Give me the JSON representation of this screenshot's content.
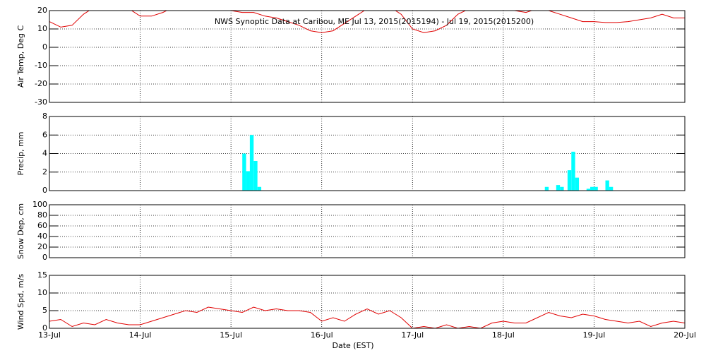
{
  "chart_data": [
    {
      "type": "line",
      "title": "NWS Synoptic Data at Caribou, ME   Jul 13, 2015(2015194) - Jul 19, 2015(2015200)",
      "ylabel": "Air Temp, Deg C",
      "ylim": [
        -30,
        20
      ],
      "yticks": [
        -30,
        -20,
        -10,
        0,
        10,
        20
      ],
      "color": "#e00000",
      "x": [
        0,
        0.125,
        0.25,
        0.375,
        0.5,
        0.625,
        0.75,
        0.875,
        1,
        1.125,
        1.25,
        1.375,
        1.5,
        1.625,
        1.75,
        1.875,
        2,
        2.125,
        2.25,
        2.375,
        2.5,
        2.625,
        2.75,
        2.875,
        3,
        3.125,
        3.25,
        3.375,
        3.5,
        3.625,
        3.75,
        3.875,
        4,
        4.125,
        4.25,
        4.375,
        4.5,
        4.625,
        4.75,
        4.875,
        5,
        5.125,
        5.25,
        5.375,
        5.5,
        5.625,
        5.75,
        5.875,
        6,
        6.125,
        6.25,
        6.375,
        6.5,
        6.625,
        6.75,
        6.875,
        7
      ],
      "values": [
        14,
        11,
        12,
        18,
        22,
        22,
        22,
        21,
        17,
        17,
        19,
        22,
        22,
        22,
        22,
        22,
        20,
        19,
        19,
        17,
        16,
        14,
        12,
        9,
        8,
        9,
        13,
        17,
        21,
        22,
        22,
        18,
        10,
        8,
        9,
        12,
        18,
        21,
        22,
        22,
        22,
        20,
        19,
        21,
        20,
        18,
        16,
        14,
        14,
        13.5,
        13.5,
        14,
        15,
        16,
        18,
        16,
        16
      ]
    },
    {
      "type": "bar",
      "ylabel": "Precip, mm",
      "ylim": [
        0,
        8
      ],
      "yticks": [
        0,
        2,
        4,
        6,
        8
      ],
      "color": "#00ffff",
      "bar_width": 0.0417,
      "x": [
        2.125,
        2.167,
        2.208,
        2.25,
        2.292,
        5.458,
        5.583,
        5.625,
        5.708,
        5.75,
        5.792,
        5.917,
        5.958,
        6.0,
        6.125,
        6.167
      ],
      "values": [
        4,
        2.1,
        6,
        3.2,
        0.4,
        0.4,
        0.6,
        0.4,
        2.2,
        4.2,
        1.4,
        0.2,
        0.4,
        0.4,
        1.1,
        0.4
      ]
    },
    {
      "type": "line",
      "ylabel": "Snow Dep, cm",
      "ylim": [
        0,
        100
      ],
      "yticks": [
        0,
        20,
        40,
        60,
        80,
        100
      ],
      "color": "#e00000",
      "x": [],
      "values": []
    },
    {
      "type": "line",
      "ylabel": "Wind Spd, m/s",
      "ylim": [
        0,
        15
      ],
      "yticks": [
        0,
        5,
        10,
        15
      ],
      "color": "#e00000",
      "x": [
        0,
        0.125,
        0.25,
        0.375,
        0.5,
        0.625,
        0.75,
        0.875,
        1,
        1.125,
        1.25,
        1.375,
        1.5,
        1.625,
        1.75,
        1.875,
        2,
        2.125,
        2.25,
        2.375,
        2.5,
        2.625,
        2.75,
        2.875,
        3,
        3.125,
        3.25,
        3.375,
        3.5,
        3.625,
        3.75,
        3.875,
        4,
        4.125,
        4.25,
        4.375,
        4.5,
        4.625,
        4.75,
        4.875,
        5,
        5.125,
        5.25,
        5.375,
        5.5,
        5.625,
        5.75,
        5.875,
        6,
        6.125,
        6.25,
        6.375,
        6.5,
        6.625,
        6.75,
        6.875,
        7
      ],
      "values": [
        2,
        2.5,
        0.5,
        1.5,
        1,
        2.5,
        1.5,
        1,
        1,
        2,
        3,
        4,
        5,
        4.5,
        6,
        5.5,
        5,
        4.5,
        6,
        5,
        5.5,
        5,
        5,
        4.5,
        2,
        3,
        2,
        4,
        5.5,
        4,
        5,
        3,
        0,
        0.5,
        0,
        1,
        0,
        0.5,
        0,
        1.5,
        2,
        1.5,
        1.5,
        3,
        4.5,
        3.5,
        3,
        4,
        3.5,
        2.5,
        2,
        1.5,
        2,
        0.5,
        1.5,
        2,
        1.5
      ]
    }
  ],
  "x_axis": {
    "xlabel": "Date (EST)",
    "xlim": [
      0,
      7
    ],
    "xticks": [
      {
        "value": 0,
        "label": "13-Jul"
      },
      {
        "value": 1,
        "label": "14-Jul"
      },
      {
        "value": 2,
        "label": "15-Jul"
      },
      {
        "value": 3,
        "label": "16-Jul"
      },
      {
        "value": 4,
        "label": "17-Jul"
      },
      {
        "value": 5,
        "label": "18-Jul"
      },
      {
        "value": 6,
        "label": "19-Jul"
      },
      {
        "value": 7,
        "label": "20-Jul"
      }
    ]
  }
}
